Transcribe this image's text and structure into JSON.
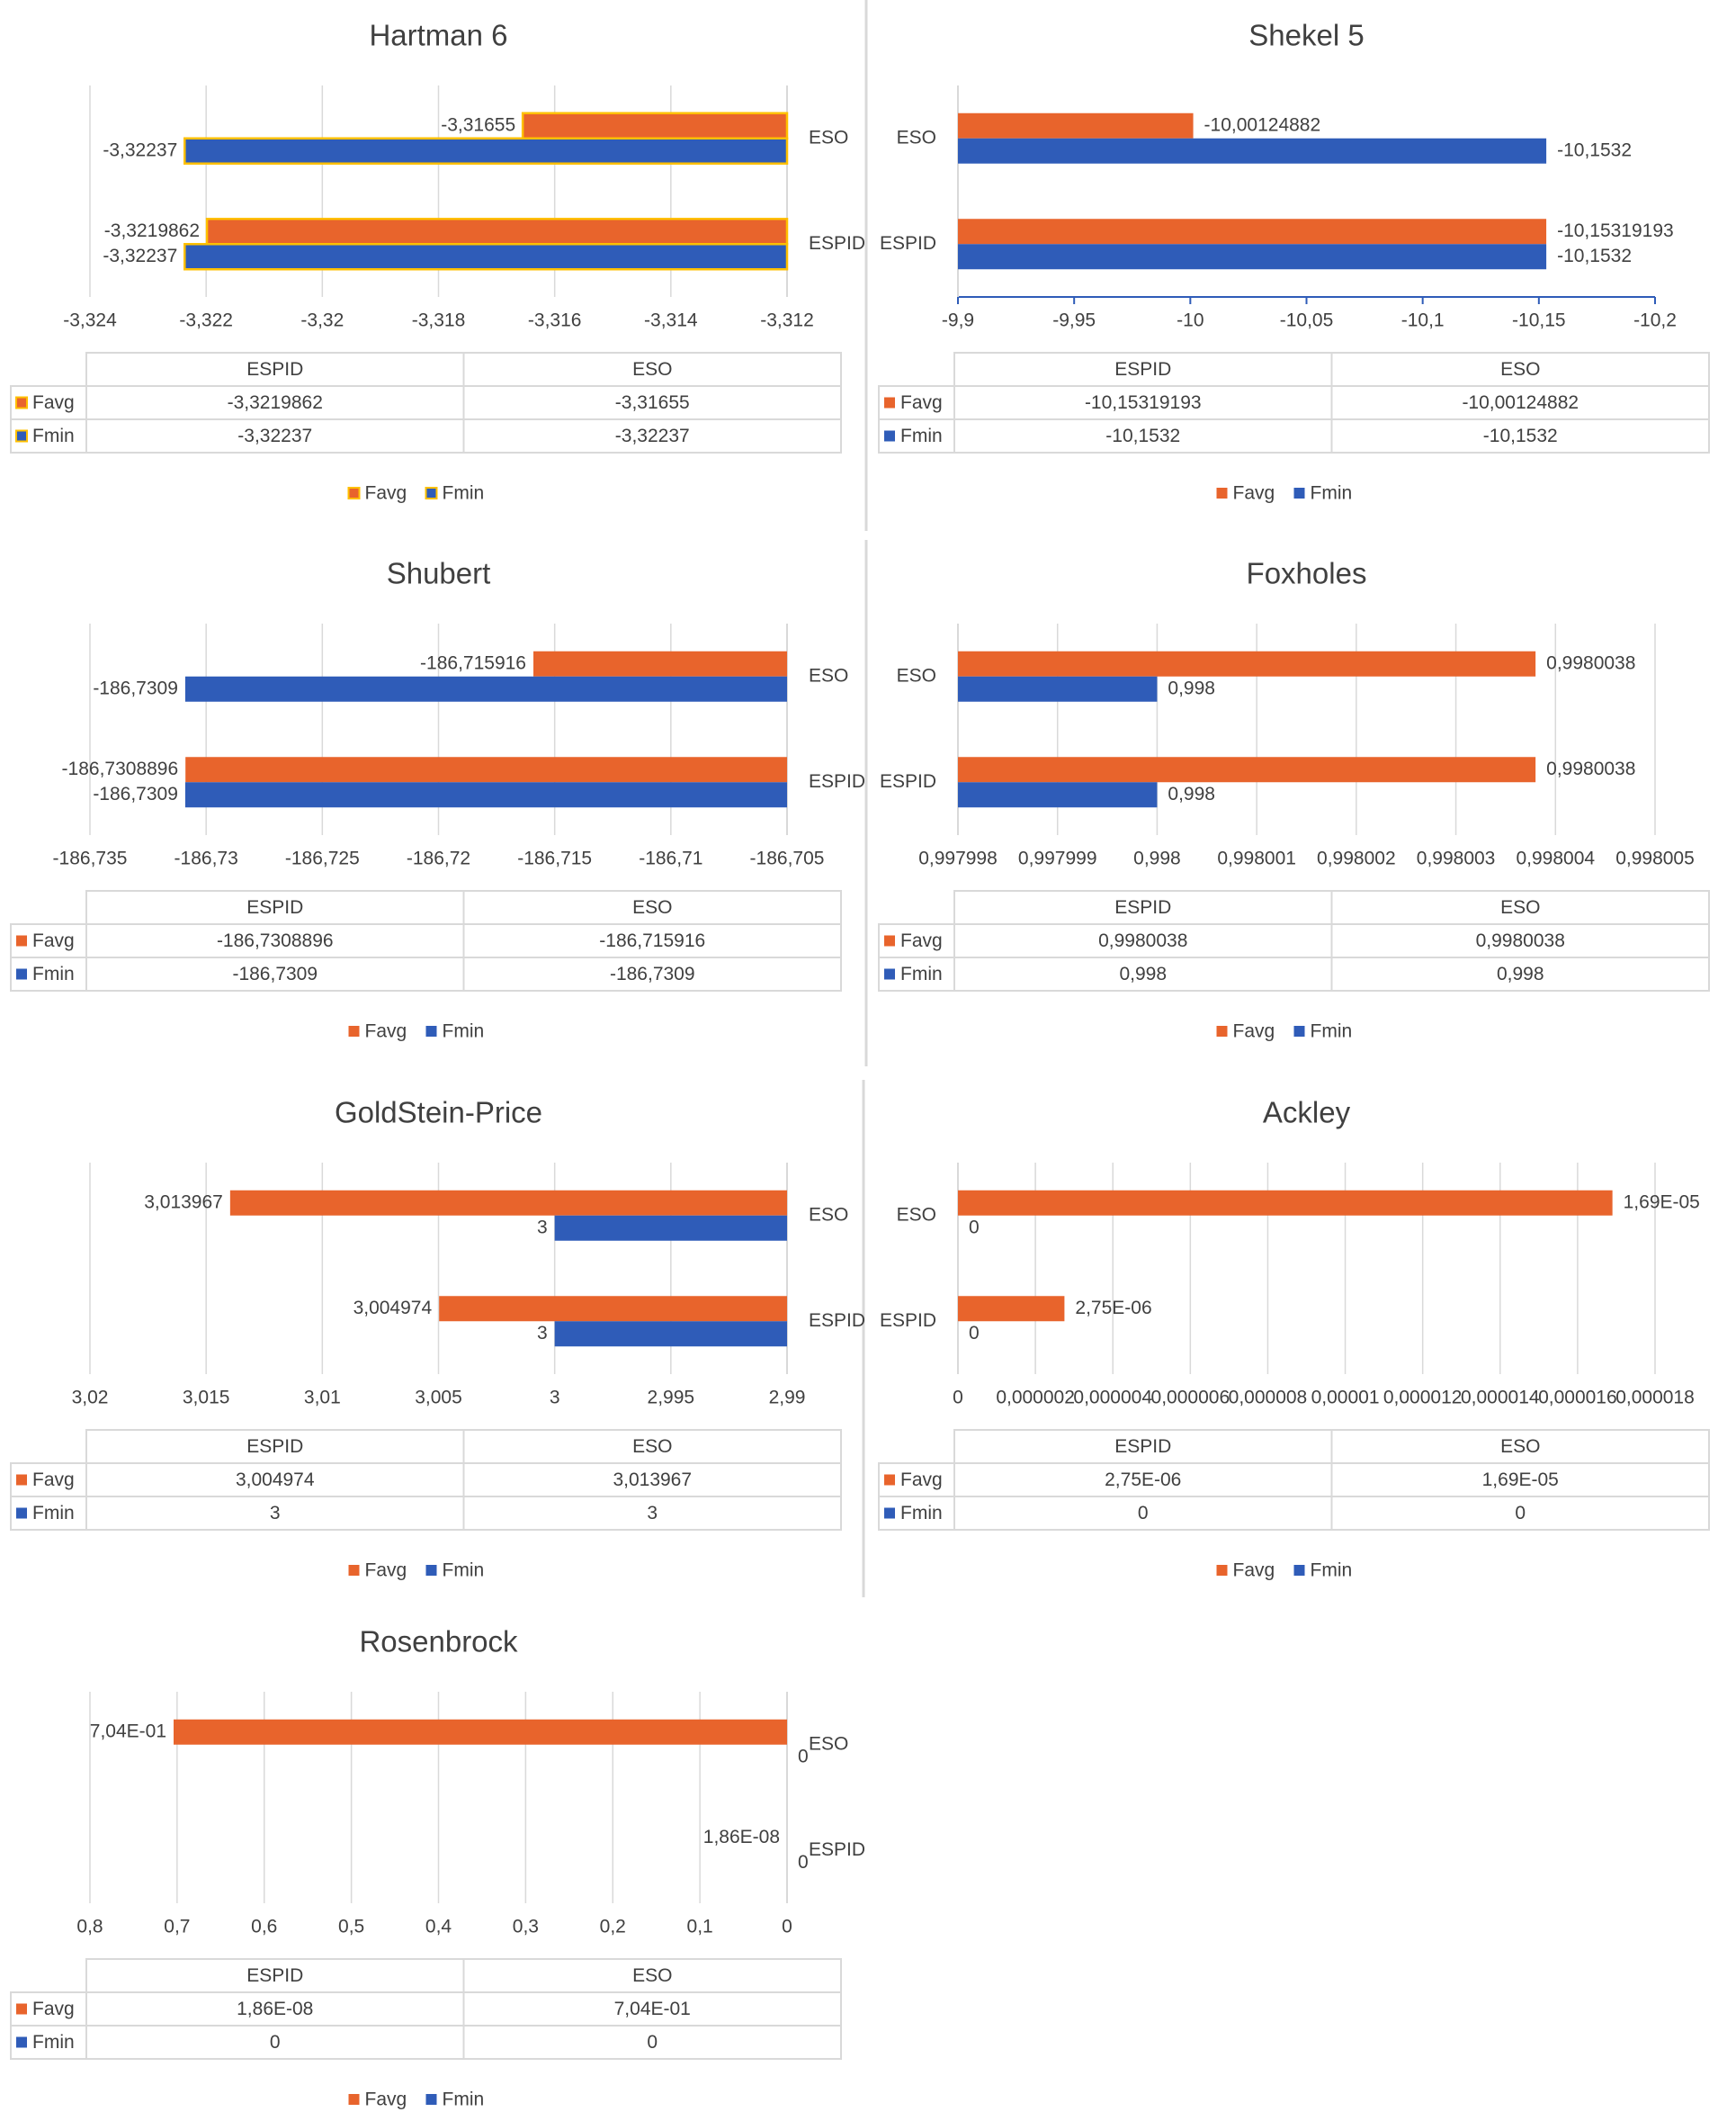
{
  "chart_data": [
    {
      "type": "bar",
      "title": "Hartman 6",
      "categories": [
        "ESPID",
        "ESO"
      ],
      "bar_edge_color": "#ffc000",
      "series": [
        {
          "name": "Favg",
          "color": "#e8642c",
          "values": [
            -3.3219862,
            -3.31655
          ],
          "value_labels": [
            "-3,3219862",
            "-3,31655"
          ]
        },
        {
          "name": "Fmin",
          "color": "#2f5cb8",
          "values": [
            -3.32237,
            -3.32237
          ],
          "value_labels": [
            "-3,32237",
            "-3,32237"
          ]
        }
      ],
      "xlim": [
        -3.324,
        -3.312
      ],
      "xticks": [
        {
          "value": -3.324,
          "label": "-3,324"
        },
        {
          "value": -3.322,
          "label": "-3,322"
        },
        {
          "value": -3.32,
          "label": "-3,32"
        },
        {
          "value": -3.318,
          "label": "-3,318"
        },
        {
          "value": -3.316,
          "label": "-3,316"
        },
        {
          "value": -3.314,
          "label": "-3,314"
        },
        {
          "value": -3.312,
          "label": "-3,312"
        }
      ],
      "grid": true
    },
    {
      "type": "bar",
      "title": "Shekel 5",
      "categories": [
        "ESPID",
        "ESO"
      ],
      "series": [
        {
          "name": "Favg",
          "color": "#e8642c",
          "values": [
            -10.15319193,
            -10.00124882
          ],
          "value_labels": [
            "-10,15319193",
            "-10,00124882"
          ]
        },
        {
          "name": "Fmin",
          "color": "#2f5cb8",
          "values": [
            -10.1532,
            -10.1532
          ],
          "value_labels": [
            "-10,1532",
            "-10,1532"
          ]
        }
      ],
      "xlim": [
        -9.9,
        -10.2
      ],
      "xticks": [
        {
          "value": -9.9,
          "label": "-9,9"
        },
        {
          "value": -9.95,
          "label": "-9,95"
        },
        -10,
        {
          "value": -10.05,
          "label": "-10,05"
        },
        {
          "value": -10.1,
          "label": "-10,1"
        },
        {
          "value": -10.15,
          "label": "-10,15"
        },
        {
          "value": -10.2,
          "label": "-10,2"
        }
      ],
      "grid": false
    },
    {
      "type": "bar",
      "title": "Shubert",
      "categories": [
        "ESPID",
        "ESO"
      ],
      "series": [
        {
          "name": "Favg",
          "color": "#e8642c",
          "values": [
            -186.7308896,
            -186.715916
          ],
          "value_labels": [
            "-186,7308896",
            "-186,715916"
          ]
        },
        {
          "name": "Fmin",
          "color": "#2f5cb8",
          "values": [
            -186.7309,
            -186.7309
          ],
          "value_labels": [
            "-186,7309",
            "-186,7309"
          ]
        }
      ],
      "xlim": [
        -186.735,
        -186.705
      ],
      "xticks": [
        {
          "value": -186.735,
          "label": "-186,735"
        },
        {
          "value": -186.73,
          "label": "-186,73"
        },
        {
          "value": -186.725,
          "label": "-186,725"
        },
        {
          "value": -186.72,
          "label": "-186,72"
        },
        {
          "value": -186.715,
          "label": "-186,715"
        },
        {
          "value": -186.71,
          "label": "-186,71"
        },
        {
          "value": -186.705,
          "label": "-186,705"
        }
      ],
      "grid": true
    },
    {
      "type": "bar",
      "title": "Foxholes",
      "categories": [
        "ESPID",
        "ESO"
      ],
      "series": [
        {
          "name": "Favg",
          "color": "#e8642c",
          "values": [
            0.9980038,
            0.9980038
          ],
          "value_labels": [
            "0,9980038",
            "0,9980038"
          ]
        },
        {
          "name": "Fmin",
          "color": "#2f5cb8",
          "values": [
            0.998,
            0.998
          ],
          "value_labels": [
            "0,998",
            "0,998"
          ]
        }
      ],
      "xlim": [
        0.997998,
        0.998005
      ],
      "xticks": [
        {
          "value": 0.997998,
          "label": "0,997998"
        },
        {
          "value": 0.997999,
          "label": "0,997999"
        },
        {
          "value": 0.998,
          "label": "0,998"
        },
        {
          "value": 0.998001,
          "label": "0,998001"
        },
        {
          "value": 0.998002,
          "label": "0,998002"
        },
        {
          "value": 0.998003,
          "label": "0,998003"
        },
        {
          "value": 0.998004,
          "label": "0,998004"
        },
        {
          "value": 0.998005,
          "label": "0,998005"
        }
      ],
      "grid": true
    },
    {
      "type": "bar",
      "title": "GoldStein-Price",
      "categories": [
        "ESPID",
        "ESO"
      ],
      "series": [
        {
          "name": "Favg",
          "color": "#e8642c",
          "values": [
            3.004974,
            3.013967
          ],
          "value_labels": [
            "3,004974",
            "3,013967"
          ]
        },
        {
          "name": "Fmin",
          "color": "#2f5cb8",
          "values": [
            3,
            3
          ],
          "value_labels": [
            "3",
            "3"
          ]
        }
      ],
      "xlim": [
        3.02,
        2.99
      ],
      "xticks": [
        {
          "value": 3.02,
          "label": "3,02"
        },
        {
          "value": 3.015,
          "label": "3,015"
        },
        {
          "value": 3.01,
          "label": "3,01"
        },
        {
          "value": 3.005,
          "label": "3,005"
        },
        3,
        {
          "value": 2.995,
          "label": "2,995"
        },
        {
          "value": 2.99,
          "label": "2,99"
        }
      ],
      "grid": true
    },
    {
      "type": "bar",
      "title": "Ackley",
      "categories": [
        "ESPID",
        "ESO"
      ],
      "series": [
        {
          "name": "Favg",
          "color": "#e8642c",
          "values": [
            2.75e-06,
            1.69e-05
          ],
          "value_labels": [
            "2,75E-06",
            "1,69E-05"
          ]
        },
        {
          "name": "Fmin",
          "color": "#2f5cb8",
          "values": [
            0,
            0
          ],
          "value_labels": [
            "0",
            "0"
          ]
        }
      ],
      "xlim": [
        0,
        1.8e-05
      ],
      "xticks": [
        0,
        {
          "value": 2e-06,
          "label": "0,000002"
        },
        {
          "value": 4e-06,
          "label": "0,000004"
        },
        {
          "value": 6e-06,
          "label": "0,000006"
        },
        {
          "value": 8e-06,
          "label": "0,000008"
        },
        {
          "value": 1e-05,
          "label": "0,00001"
        },
        {
          "value": 1.2e-05,
          "label": "0,000012"
        },
        {
          "value": 1.4e-05,
          "label": "0,000014"
        },
        {
          "value": 1.6e-05,
          "label": "0,000016"
        },
        {
          "value": 1.8e-05,
          "label": "0,000018"
        }
      ],
      "grid": true
    },
    {
      "type": "bar",
      "title": "Rosenbrock",
      "categories": [
        "ESPID",
        "ESO"
      ],
      "series": [
        {
          "name": "Favg",
          "color": "#e8642c",
          "values": [
            1.86e-08,
            0.704
          ],
          "value_labels": [
            "1,86E-08",
            "7,04E-01"
          ]
        },
        {
          "name": "Fmin",
          "color": "#2f5cb8",
          "values": [
            0,
            0
          ],
          "value_labels": [
            "0",
            "0"
          ]
        }
      ],
      "xlim": [
        0.8,
        0
      ],
      "xticks": [
        {
          "value": 0.8,
          "label": "0,8"
        },
        {
          "value": 0.7,
          "label": "0,7"
        },
        {
          "value": 0.6,
          "label": "0,6"
        },
        {
          "value": 0.5,
          "label": "0,5"
        },
        {
          "value": 0.4,
          "label": "0,4"
        },
        {
          "value": 0.3,
          "label": "0,3"
        },
        {
          "value": 0.2,
          "label": "0,2"
        },
        {
          "value": 0.1,
          "label": "0,1"
        },
        0
      ],
      "grid": true
    }
  ]
}
